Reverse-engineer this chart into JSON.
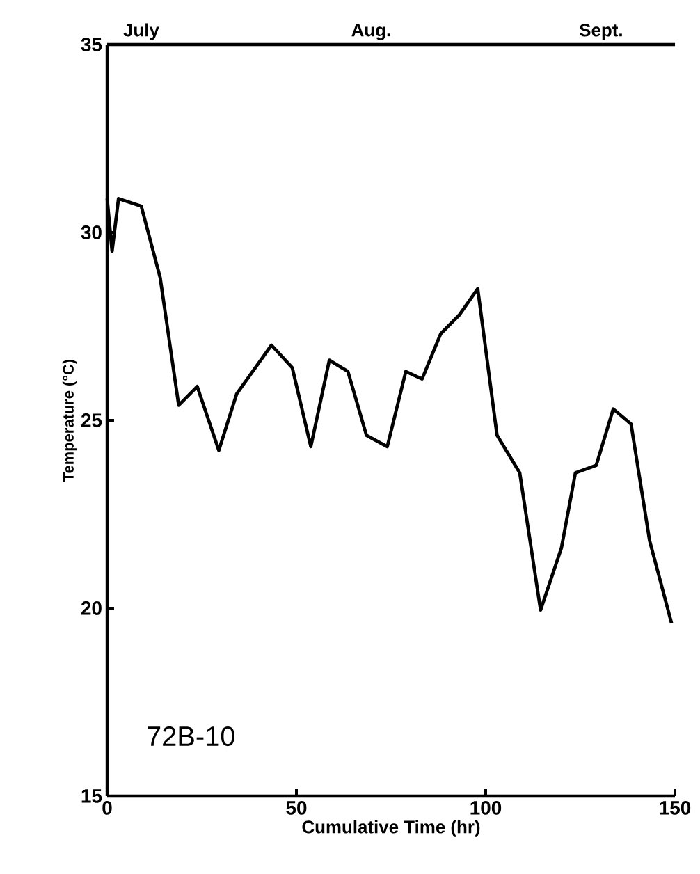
{
  "chart_data": {
    "type": "line",
    "xlabel": "Cumulative Time (hr)",
    "ylabel": "Temperature (°C)",
    "annotations": [
      "72B-10",
      "July",
      "Aug.",
      "Sept."
    ],
    "xlim": [
      0,
      150
    ],
    "xticks": [
      0,
      50,
      100,
      150
    ],
    "ylim": [
      15,
      35
    ],
    "yticks": [
      15,
      20,
      25,
      30,
      35
    ],
    "grid": false,
    "marker": "none",
    "line_style": "solid",
    "series": [
      {
        "color": "#000000",
        "x": [
          0,
          1.3,
          3,
          9,
          14,
          18.9,
          23.8,
          29.5,
          34.2,
          43.4,
          48.9,
          53.8,
          58.7,
          63.6,
          68.5,
          74,
          78.9,
          83.2,
          88.1,
          93,
          97.9,
          103,
          109,
          114.5,
          120,
          123.7,
          129.2,
          133.7,
          138.4,
          143.3,
          149.1
        ],
        "values": [
          30.9,
          29.5,
          30.9,
          30.7,
          28.8,
          25.4,
          25.9,
          24.2,
          25.7,
          27.0,
          26.4,
          24.3,
          26.6,
          26.3,
          24.6,
          24.3,
          26.3,
          26.1,
          27.3,
          27.8,
          28.5,
          24.6,
          23.6,
          19.95,
          21.6,
          23.6,
          23.8,
          25.3,
          24.9,
          21.8,
          19.6
        ]
      }
    ]
  }
}
